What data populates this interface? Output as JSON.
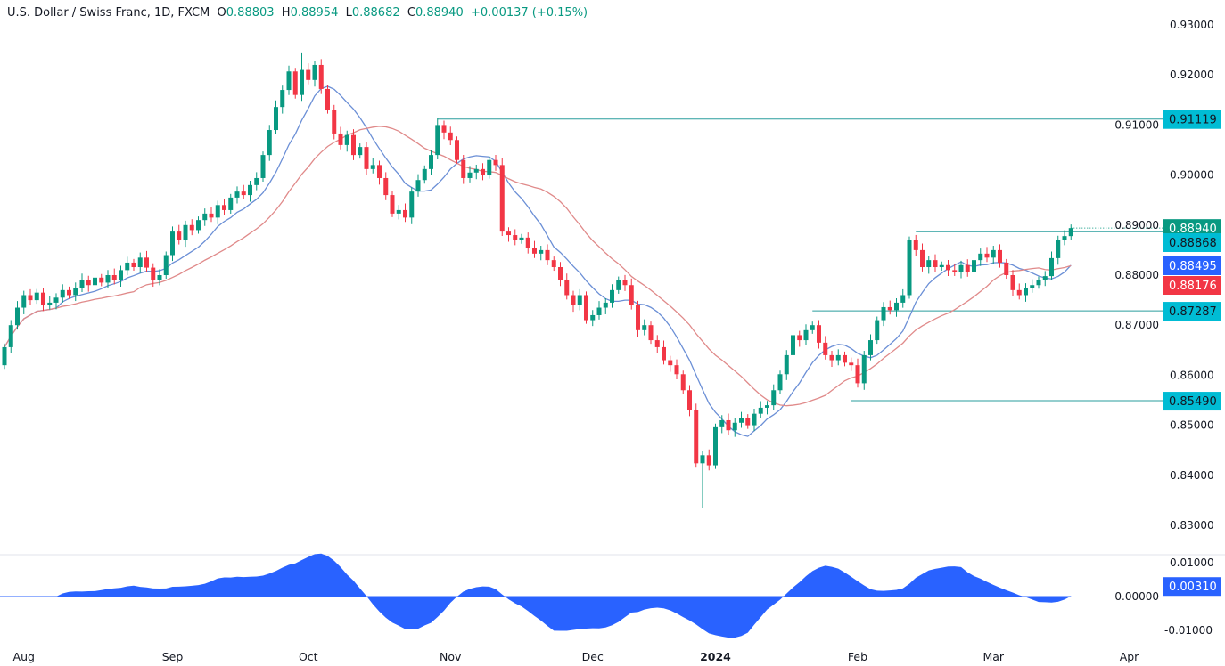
{
  "header": {
    "symbol": "U.S. Dollar / Swiss Franc, 1D, FXCM",
    "o_label": "O",
    "open": "0.88803",
    "h_label": "H",
    "high": "0.88954",
    "l_label": "L",
    "low": "0.88682",
    "c_label": "C",
    "close": "0.88940",
    "change": "+0.00137 (+0.15%)"
  },
  "colors": {
    "up": "#089981",
    "down": "#f23645",
    "fast_ma": "#6b8fd6",
    "slow_ma": "#e08a8a",
    "level": "#2a9d9d",
    "osc": "#2962ff",
    "cyan": "#00bcd4"
  },
  "price_axis": {
    "ticks": [
      "0.93000",
      "0.92000",
      "0.91000",
      "0.90000",
      "0.89000",
      "0.88000",
      "0.87000",
      "0.86000",
      "0.85000",
      "0.84000",
      "0.83000"
    ],
    "ylim": [
      0.826,
      0.933
    ]
  },
  "osc_axis": {
    "ticks": [
      "0.01000",
      "0.00000",
      "-0.01000"
    ]
  },
  "time_axis": {
    "labels": [
      "Aug",
      "Sep",
      "Oct",
      "Nov",
      "Dec",
      "2024",
      "Feb",
      "Mar",
      "Apr"
    ],
    "label_index": [
      3,
      26,
      47,
      69,
      91,
      110,
      132,
      153,
      174
    ]
  },
  "price_labels": [
    {
      "text": "0.91119",
      "value": 0.91119,
      "kind": "level",
      "from_index": 67
    },
    {
      "text": "0.88940",
      "value": 0.8894,
      "kind": "last"
    },
    {
      "text": "0.88868",
      "value": 0.88868,
      "kind": "level",
      "from_index": 141
    },
    {
      "text": "0.88495",
      "value": 0.88495,
      "kind": "fast"
    },
    {
      "text": "0.88176",
      "value": 0.88176,
      "kind": "slow"
    },
    {
      "text": "0.87287",
      "value": 0.87287,
      "kind": "level",
      "from_index": 125
    },
    {
      "text": "0.85490",
      "value": 0.8549,
      "kind": "level",
      "from_index": 131
    }
  ],
  "osc_label": {
    "text": "0.00310",
    "value": 0.0031
  },
  "chart_data": {
    "type": "candlestick",
    "title": "U.S. Dollar / Swiss Franc, 1D, FXCM",
    "first_open": 0.862,
    "wick": 0.0012,
    "extremes": {
      "high": {
        "index": 46,
        "value": 0.9245
      },
      "low": {
        "index": 108,
        "value": 0.8335
      }
    },
    "closes": [
      0.8656,
      0.87,
      0.8735,
      0.876,
      0.875,
      0.8765,
      0.874,
      0.8745,
      0.8755,
      0.877,
      0.876,
      0.8775,
      0.879,
      0.878,
      0.8795,
      0.8785,
      0.88,
      0.879,
      0.881,
      0.8825,
      0.8816,
      0.8835,
      0.8815,
      0.879,
      0.88,
      0.884,
      0.8887,
      0.887,
      0.89,
      0.889,
      0.891,
      0.8923,
      0.8915,
      0.894,
      0.893,
      0.8955,
      0.8967,
      0.896,
      0.898,
      0.8994,
      0.904,
      0.909,
      0.9136,
      0.917,
      0.9207,
      0.916,
      0.921,
      0.919,
      0.922,
      0.9172,
      0.913,
      0.9083,
      0.906,
      0.908,
      0.904,
      0.9056,
      0.9012,
      0.902,
      0.8994,
      0.896,
      0.8923,
      0.893,
      0.8915,
      0.8967,
      0.899,
      0.9012,
      0.904,
      0.91,
      0.9085,
      0.907,
      0.903,
      0.8994,
      0.9005,
      0.9012,
      0.9,
      0.903,
      0.902,
      0.8887,
      0.888,
      0.887,
      0.8875,
      0.8855,
      0.8843,
      0.885,
      0.883,
      0.8816,
      0.879,
      0.876,
      0.874,
      0.876,
      0.871,
      0.872,
      0.8735,
      0.8745,
      0.877,
      0.879,
      0.878,
      0.874,
      0.869,
      0.87,
      0.867,
      0.8656,
      0.863,
      0.862,
      0.8602,
      0.857,
      0.853,
      0.8424,
      0.844,
      0.842,
      0.8496,
      0.851,
      0.849,
      0.8505,
      0.8515,
      0.85,
      0.8523,
      0.8535,
      0.854,
      0.857,
      0.8602,
      0.864,
      0.868,
      0.867,
      0.869,
      0.87,
      0.8665,
      0.864,
      0.863,
      0.864,
      0.8625,
      0.862,
      0.8584,
      0.864,
      0.867,
      0.871,
      0.8736,
      0.873,
      0.8745,
      0.876,
      0.887,
      0.885,
      0.8816,
      0.883,
      0.8816,
      0.882,
      0.881,
      0.8807,
      0.882,
      0.8807,
      0.883,
      0.8843,
      0.8835,
      0.885,
      0.8825,
      0.88,
      0.877,
      0.876,
      0.8775,
      0.878,
      0.879,
      0.8798,
      0.8834,
      0.887,
      0.8878,
      0.8894
    ],
    "indicators": [
      {
        "name": "fast SMA",
        "period": 9
      },
      {
        "name": "slow SMA",
        "period": 21
      },
      {
        "name": "oscillator",
        "formula": "fast SMA - slow SMA"
      }
    ]
  }
}
